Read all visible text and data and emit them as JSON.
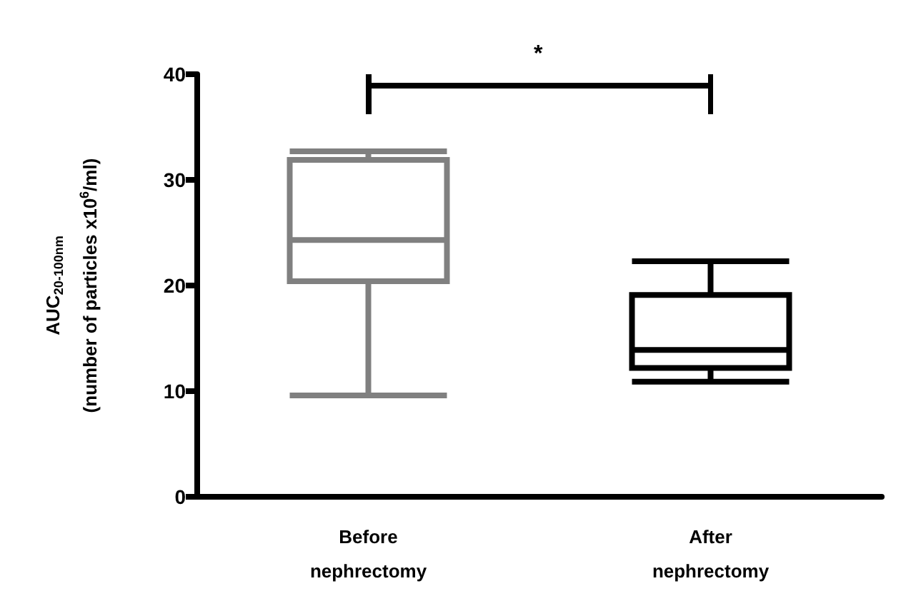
{
  "chart_data": {
    "type": "box",
    "ylabel": "AUC$_{20-100nm}$\n(number of particles x10$^{6}$/ml)",
    "categories": [
      "Before\nnephrectomy",
      "After\nnephrectomy"
    ],
    "boxes": [
      {
        "low": 9.6,
        "q1": 20.4,
        "median": 24.3,
        "q3": 31.9,
        "high": 32.7
      },
      {
        "low": 10.9,
        "q1": 12.2,
        "median": 13.9,
        "q3": 19.1,
        "high": 22.3
      }
    ],
    "colors": [
      "#808080",
      "#000000"
    ],
    "ylim": [
      0,
      40
    ],
    "yticks": [
      0,
      10,
      20,
      30,
      40
    ],
    "grid": false,
    "annotations": [
      "*"
    ]
  }
}
